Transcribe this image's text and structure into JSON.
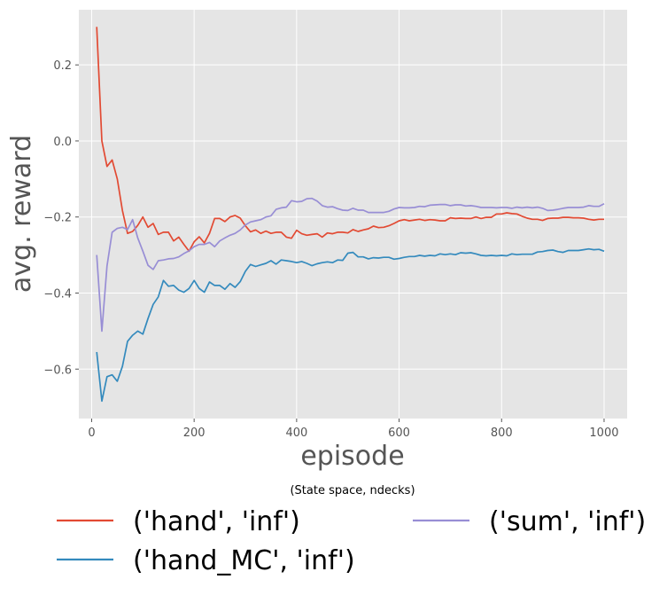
{
  "chart_data": {
    "type": "line",
    "xlabel": "episode",
    "ylabel": "avg. reward",
    "xlim": [
      -25,
      1045
    ],
    "ylim": [
      -0.73,
      0.345
    ],
    "xticks": [
      0,
      200,
      400,
      600,
      800,
      1000
    ],
    "xtick_labels": [
      "0",
      "200",
      "400",
      "600",
      "800",
      "1000"
    ],
    "yticks": [
      -0.6,
      -0.4,
      -0.2,
      0.0,
      0.2
    ],
    "ytick_labels": [
      "−0.6",
      "−0.4",
      "−0.2",
      "0.0",
      "0.2"
    ],
    "grid": true,
    "legend_title": "(State space, ndecks)",
    "legend_placement": "below plot",
    "series": [
      {
        "name": "('hand', 'inf')",
        "color": "#E24A33",
        "x": [
          10,
          20,
          30,
          40,
          50,
          60,
          70,
          80,
          90,
          100,
          110,
          120,
          130,
          140,
          150,
          160,
          170,
          180,
          190,
          200,
          210,
          220,
          230,
          240,
          250,
          260,
          270,
          280,
          290,
          300,
          310,
          320,
          330,
          340,
          350,
          360,
          370,
          380,
          390,
          400,
          410,
          420,
          430,
          440,
          450,
          460,
          470,
          480,
          490,
          500,
          510,
          520,
          530,
          540,
          550,
          560,
          570,
          580,
          590,
          600,
          610,
          620,
          630,
          640,
          650,
          660,
          670,
          680,
          690,
          700,
          710,
          720,
          730,
          740,
          750,
          760,
          770,
          780,
          790,
          800,
          810,
          820,
          830,
          840,
          850,
          860,
          870,
          880,
          890,
          900,
          910,
          920,
          930,
          940,
          950,
          960,
          970,
          980,
          990,
          1000
        ],
        "values": [
          0.3,
          0.0,
          -0.067,
          -0.05,
          -0.1,
          -0.183,
          -0.243,
          -0.238,
          -0.222,
          -0.2,
          -0.227,
          -0.217,
          -0.246,
          -0.24,
          -0.24,
          -0.263,
          -0.253,
          -0.272,
          -0.29,
          -0.265,
          -0.252,
          -0.268,
          -0.243,
          -0.204,
          -0.204,
          -0.212,
          -0.2,
          -0.196,
          -0.203,
          -0.223,
          -0.239,
          -0.234,
          -0.243,
          -0.237,
          -0.243,
          -0.24,
          -0.24,
          -0.253,
          -0.256,
          -0.235,
          -0.244,
          -0.248,
          -0.246,
          -0.244,
          -0.253,
          -0.242,
          -0.244,
          -0.24,
          -0.24,
          -0.242,
          -0.233,
          -0.238,
          -0.234,
          -0.231,
          -0.224,
          -0.228,
          -0.227,
          -0.223,
          -0.217,
          -0.21,
          -0.207,
          -0.21,
          -0.208,
          -0.206,
          -0.209,
          -0.207,
          -0.208,
          -0.21,
          -0.21,
          -0.202,
          -0.204,
          -0.203,
          -0.204,
          -0.204,
          -0.2,
          -0.204,
          -0.201,
          -0.201,
          -0.192,
          -0.192,
          -0.189,
          -0.191,
          -0.192,
          -0.198,
          -0.203,
          -0.206,
          -0.206,
          -0.209,
          -0.204,
          -0.203,
          -0.203,
          -0.201,
          -0.201,
          -0.202,
          -0.202,
          -0.203,
          -0.206,
          -0.208,
          -0.206,
          -0.206
        ]
      },
      {
        "name": "('hand_MC', 'inf')",
        "color": "#348ABD",
        "x": [
          10,
          20,
          30,
          40,
          50,
          60,
          70,
          80,
          90,
          100,
          110,
          120,
          130,
          140,
          150,
          160,
          170,
          180,
          190,
          200,
          210,
          220,
          230,
          240,
          250,
          260,
          270,
          280,
          290,
          300,
          310,
          320,
          330,
          340,
          350,
          360,
          370,
          380,
          390,
          400,
          410,
          420,
          430,
          440,
          450,
          460,
          470,
          480,
          490,
          500,
          510,
          520,
          530,
          540,
          550,
          560,
          570,
          580,
          590,
          600,
          610,
          620,
          630,
          640,
          650,
          660,
          670,
          680,
          690,
          700,
          710,
          720,
          730,
          740,
          750,
          760,
          770,
          780,
          790,
          800,
          810,
          820,
          830,
          840,
          850,
          860,
          870,
          880,
          890,
          900,
          910,
          920,
          930,
          940,
          950,
          960,
          970,
          980,
          990,
          1000
        ],
        "values": [
          -0.555,
          -0.684,
          -0.62,
          -0.615,
          -0.632,
          -0.593,
          -0.527,
          -0.511,
          -0.5,
          -0.508,
          -0.467,
          -0.43,
          -0.41,
          -0.367,
          -0.382,
          -0.38,
          -0.392,
          -0.398,
          -0.388,
          -0.367,
          -0.388,
          -0.398,
          -0.371,
          -0.38,
          -0.38,
          -0.39,
          -0.375,
          -0.385,
          -0.37,
          -0.343,
          -0.325,
          -0.33,
          -0.326,
          -0.322,
          -0.315,
          -0.324,
          -0.313,
          -0.315,
          -0.317,
          -0.32,
          -0.317,
          -0.322,
          -0.328,
          -0.323,
          -0.32,
          -0.318,
          -0.32,
          -0.313,
          -0.314,
          -0.295,
          -0.293,
          -0.305,
          -0.305,
          -0.31,
          -0.307,
          -0.308,
          -0.306,
          -0.306,
          -0.311,
          -0.309,
          -0.306,
          -0.304,
          -0.304,
          -0.301,
          -0.303,
          -0.301,
          -0.302,
          -0.297,
          -0.299,
          -0.297,
          -0.299,
          -0.294,
          -0.295,
          -0.294,
          -0.297,
          -0.301,
          -0.302,
          -0.301,
          -0.302,
          -0.301,
          -0.302,
          -0.297,
          -0.299,
          -0.298,
          -0.298,
          -0.298,
          -0.292,
          -0.291,
          -0.288,
          -0.287,
          -0.291,
          -0.293,
          -0.288,
          -0.288,
          -0.288,
          -0.286,
          -0.284,
          -0.286,
          -0.285,
          -0.29
        ]
      },
      {
        "name": "('sum', 'inf')",
        "color": "#988ED5",
        "x": [
          10,
          20,
          30,
          40,
          50,
          60,
          70,
          80,
          90,
          100,
          110,
          120,
          130,
          140,
          150,
          160,
          170,
          180,
          190,
          200,
          210,
          220,
          230,
          240,
          250,
          260,
          270,
          280,
          290,
          300,
          310,
          320,
          330,
          340,
          350,
          360,
          370,
          380,
          390,
          400,
          410,
          420,
          430,
          440,
          450,
          460,
          470,
          480,
          490,
          500,
          510,
          520,
          530,
          540,
          550,
          560,
          570,
          580,
          590,
          600,
          610,
          620,
          630,
          640,
          650,
          660,
          670,
          680,
          690,
          700,
          710,
          720,
          730,
          740,
          750,
          760,
          770,
          780,
          790,
          800,
          810,
          820,
          830,
          840,
          850,
          860,
          870,
          880,
          890,
          900,
          910,
          920,
          930,
          940,
          950,
          960,
          970,
          980,
          990,
          1000
        ],
        "values": [
          -0.3,
          -0.5,
          -0.329,
          -0.24,
          -0.23,
          -0.227,
          -0.233,
          -0.207,
          -0.255,
          -0.29,
          -0.327,
          -0.338,
          -0.315,
          -0.313,
          -0.31,
          -0.309,
          -0.305,
          -0.296,
          -0.289,
          -0.278,
          -0.272,
          -0.272,
          -0.267,
          -0.278,
          -0.263,
          -0.255,
          -0.248,
          -0.243,
          -0.234,
          -0.221,
          -0.213,
          -0.21,
          -0.207,
          -0.2,
          -0.197,
          -0.18,
          -0.176,
          -0.174,
          -0.157,
          -0.16,
          -0.159,
          -0.152,
          -0.151,
          -0.158,
          -0.17,
          -0.174,
          -0.173,
          -0.178,
          -0.182,
          -0.183,
          -0.177,
          -0.182,
          -0.182,
          -0.188,
          -0.188,
          -0.188,
          -0.188,
          -0.185,
          -0.179,
          -0.175,
          -0.176,
          -0.176,
          -0.175,
          -0.172,
          -0.173,
          -0.169,
          -0.168,
          -0.167,
          -0.167,
          -0.17,
          -0.168,
          -0.168,
          -0.171,
          -0.17,
          -0.172,
          -0.175,
          -0.175,
          -0.175,
          -0.176,
          -0.175,
          -0.175,
          -0.177,
          -0.174,
          -0.176,
          -0.174,
          -0.176,
          -0.174,
          -0.177,
          -0.183,
          -0.182,
          -0.18,
          -0.177,
          -0.175,
          -0.175,
          -0.175,
          -0.174,
          -0.17,
          -0.172,
          -0.172,
          -0.165
        ]
      }
    ]
  }
}
